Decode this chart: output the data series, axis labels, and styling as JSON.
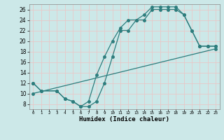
{
  "xlabel": "Humidex (Indice chaleur)",
  "background_color": "#cce8e8",
  "grid_color": "#b8d8d8",
  "line_color": "#2d7d7d",
  "xlim": [
    -0.5,
    23.5
  ],
  "ylim": [
    7,
    27
  ],
  "xticks": [
    0,
    1,
    2,
    3,
    4,
    5,
    6,
    7,
    8,
    9,
    10,
    11,
    12,
    13,
    14,
    15,
    16,
    17,
    18,
    19,
    20,
    21,
    22,
    23
  ],
  "yticks": [
    8,
    10,
    12,
    14,
    16,
    18,
    20,
    22,
    24,
    26
  ],
  "line1_x": [
    0,
    1,
    3,
    4,
    5,
    6,
    7,
    8,
    9,
    10,
    11,
    12,
    13,
    14,
    15,
    16,
    17,
    18,
    19,
    20,
    21,
    22,
    23
  ],
  "line1_y": [
    12,
    10.5,
    10.5,
    9,
    8.5,
    7.5,
    7.5,
    8.5,
    12,
    17,
    22,
    22,
    24,
    24,
    26,
    26,
    26,
    26,
    25,
    22,
    19,
    19,
    19
  ],
  "line2_x": [
    0,
    1,
    3,
    4,
    5,
    6,
    7,
    8,
    9,
    10,
    11,
    12,
    13,
    14,
    15,
    16,
    17,
    18,
    19,
    20,
    21,
    22,
    23
  ],
  "line2_y": [
    12,
    10.5,
    10.5,
    9,
    8.5,
    7.5,
    8.5,
    13.5,
    17,
    20,
    22.5,
    24,
    24,
    25,
    26.5,
    26.5,
    26.5,
    26.5,
    25,
    22,
    19,
    19,
    19
  ],
  "line3_x": [
    0,
    23
  ],
  "line3_y": [
    10,
    18.5
  ]
}
